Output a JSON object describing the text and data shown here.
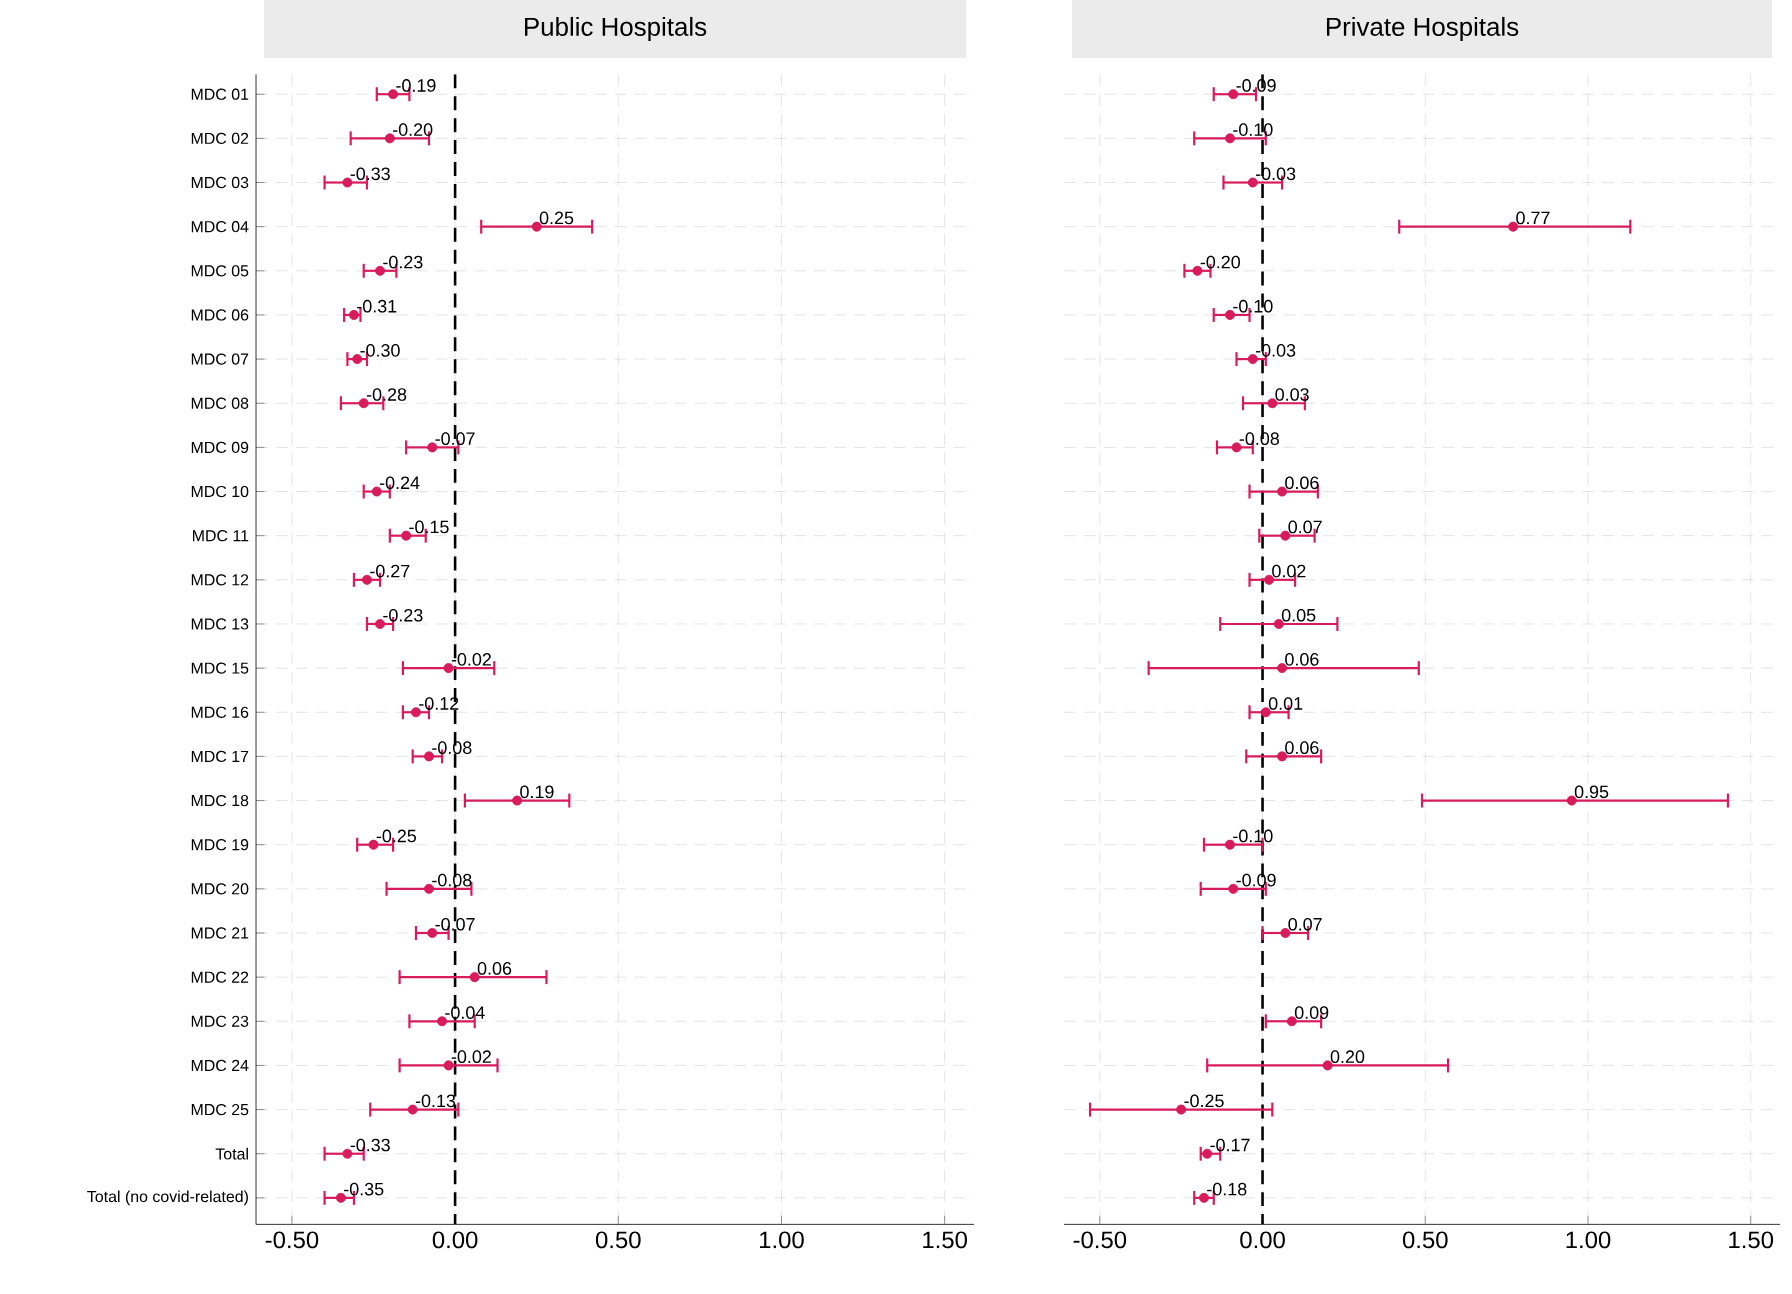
{
  "chart_data": [
    {
      "type": "scatter",
      "orientation": "horizontal",
      "title": "Public Hospitals",
      "categories": [
        "MDC 01",
        "MDC 02",
        "MDC 03",
        "MDC 04",
        "MDC 05",
        "MDC 06",
        "MDC 07",
        "MDC 08",
        "MDC 09",
        "MDC 10",
        "MDC 11",
        "MDC 12",
        "MDC 13",
        "MDC 15",
        "MDC 16",
        "MDC 17",
        "MDC 18",
        "MDC 19",
        "MDC 20",
        "MDC 21",
        "MDC 22",
        "MDC 23",
        "MDC 24",
        "MDC 25",
        "Total",
        "Total (no covid-related)"
      ],
      "values": [
        -0.19,
        -0.2,
        -0.33,
        0.25,
        -0.23,
        -0.31,
        -0.3,
        -0.28,
        -0.07,
        -0.24,
        -0.15,
        -0.27,
        -0.23,
        -0.02,
        -0.12,
        -0.08,
        0.19,
        -0.25,
        -0.08,
        -0.07,
        0.06,
        -0.04,
        -0.02,
        -0.13,
        -0.33,
        -0.35
      ],
      "errors": [
        [
          -0.24,
          -0.14
        ],
        [
          -0.32,
          -0.08
        ],
        [
          -0.4,
          -0.27
        ],
        [
          0.08,
          0.42
        ],
        [
          -0.28,
          -0.18
        ],
        [
          -0.34,
          -0.29
        ],
        [
          -0.33,
          -0.27
        ],
        [
          -0.35,
          -0.22
        ],
        [
          -0.15,
          0.01
        ],
        [
          -0.28,
          -0.2
        ],
        [
          -0.2,
          -0.09
        ],
        [
          -0.31,
          -0.23
        ],
        [
          -0.27,
          -0.19
        ],
        [
          -0.16,
          0.12
        ],
        [
          -0.16,
          -0.08
        ],
        [
          -0.13,
          -0.04
        ],
        [
          0.03,
          0.35
        ],
        [
          -0.3,
          -0.19
        ],
        [
          -0.21,
          0.05
        ],
        [
          -0.12,
          -0.02
        ],
        [
          -0.17,
          0.28
        ],
        [
          -0.14,
          0.06
        ],
        [
          -0.17,
          0.13
        ],
        [
          -0.26,
          0.01
        ],
        [
          -0.4,
          -0.28
        ],
        [
          -0.4,
          -0.31
        ]
      ],
      "value_labels": [
        "-0.19",
        "-0.20",
        "-0.33",
        "0.25",
        "-0.23",
        "-0.31",
        "-0.30",
        "-0.28",
        "-0.07",
        "-0.24",
        "-0.15",
        "-0.27",
        "-0.23",
        "-0.02",
        "-0.12",
        "-0.08",
        "0.19",
        "-0.25",
        "-0.08",
        "-0.07",
        "0.06",
        "-0.04",
        "-0.02",
        "-0.13",
        "-0.33",
        "-0.35"
      ],
      "color": "#d81b5a",
      "marker": "circle",
      "grid": true,
      "xlim": [
        -0.61,
        1.59
      ],
      "xticks": [
        {
          "value": -0.5,
          "label": "-0.50"
        },
        {
          "value": 0,
          "label": "0.00"
        },
        {
          "value": 0.5,
          "label": "0.50"
        },
        {
          "value": 1,
          "label": "1.00"
        },
        {
          "value": 1.5,
          "label": "1.50"
        }
      ],
      "ref_lines": [
        {
          "axis": "x",
          "value": 0,
          "color": "#000000",
          "line_style": "dashed"
        }
      ]
    },
    {
      "type": "scatter",
      "orientation": "horizontal",
      "title": "Private Hospitals",
      "categories": [
        null,
        null,
        null,
        null,
        null,
        null,
        null,
        null,
        null,
        null,
        null,
        null,
        null,
        null,
        null,
        null,
        null,
        null,
        null,
        null,
        null,
        null,
        null,
        null,
        null,
        null
      ],
      "values": [
        -0.09,
        -0.1,
        -0.03,
        0.77,
        -0.2,
        -0.1,
        -0.03,
        0.03,
        -0.08,
        0.06,
        0.07,
        0.02,
        0.05,
        0.06,
        0.01,
        0.06,
        0.95,
        -0.1,
        -0.09,
        0.07,
        null,
        0.09,
        0.2,
        -0.25,
        -0.17,
        -0.18
      ],
      "errors": [
        [
          -0.15,
          -0.02
        ],
        [
          -0.21,
          0.01
        ],
        [
          -0.12,
          0.06
        ],
        [
          0.42,
          1.13
        ],
        [
          -0.24,
          -0.16
        ],
        [
          -0.15,
          -0.04
        ],
        [
          -0.08,
          0.01
        ],
        [
          -0.06,
          0.13
        ],
        [
          -0.14,
          -0.03
        ],
        [
          -0.04,
          0.17
        ],
        [
          -0.01,
          0.16
        ],
        [
          -0.04,
          0.1
        ],
        [
          -0.13,
          0.23
        ],
        [
          -0.35,
          0.48
        ],
        [
          -0.04,
          0.08
        ],
        [
          -0.05,
          0.18
        ],
        [
          0.49,
          1.43
        ],
        [
          -0.18,
          0.0
        ],
        [
          -0.19,
          0.01
        ],
        [
          0.0,
          0.14
        ],
        null,
        [
          0.01,
          0.18
        ],
        [
          -0.17,
          0.57
        ],
        [
          -0.53,
          0.03
        ],
        [
          -0.19,
          -0.13
        ],
        [
          -0.21,
          -0.15
        ]
      ],
      "value_labels": [
        "-0.09",
        "-0.10",
        "-0.03",
        "0.77",
        "-0.20",
        "-0.10",
        "-0.03",
        "0.03",
        "-0.08",
        "0.06",
        "0.07",
        "0.02",
        "0.05",
        "0.06",
        "0.01",
        "0.06",
        "0.95",
        "-0.10",
        "-0.09",
        "0.07",
        null,
        "0.09",
        "0.20",
        "-0.25",
        "-0.17",
        "-0.18"
      ],
      "color": "#d81b5a",
      "marker": "circle",
      "grid": true,
      "tick_labels": "x",
      "xlim": [
        -0.61,
        1.59
      ],
      "xticks": [
        {
          "value": -0.5,
          "label": "-0.50"
        },
        {
          "value": 0,
          "label": "0.00"
        },
        {
          "value": 0.5,
          "label": "0.50"
        },
        {
          "value": 1,
          "label": "1.00"
        },
        {
          "value": 1.5,
          "label": "1.50"
        }
      ],
      "ref_lines": [
        {
          "axis": "x",
          "value": 0,
          "color": "#000000",
          "line_style": "dashed"
        }
      ]
    }
  ]
}
